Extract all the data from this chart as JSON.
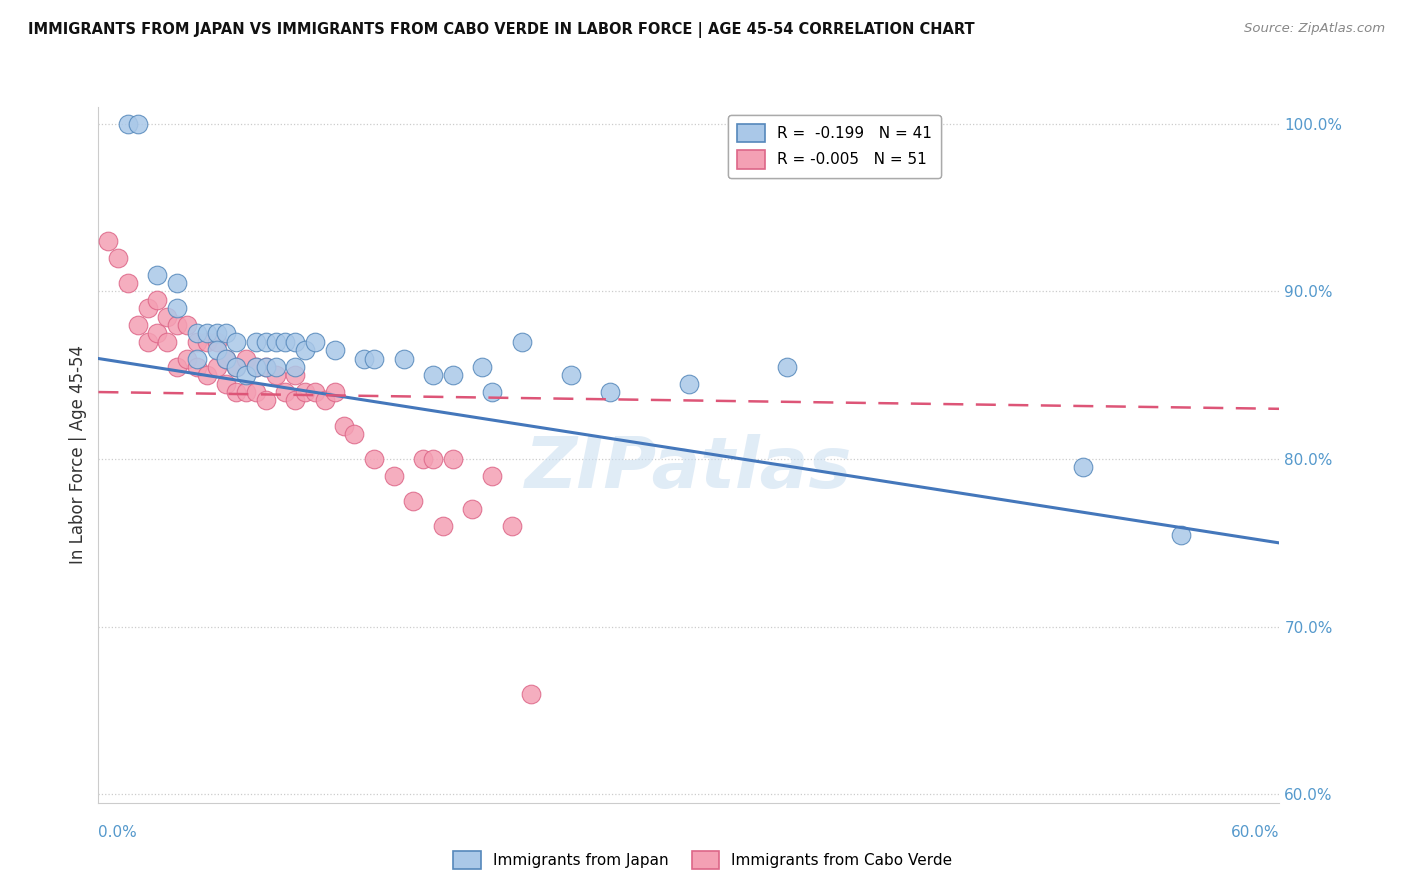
{
  "title": "IMMIGRANTS FROM JAPAN VS IMMIGRANTS FROM CABO VERDE IN LABOR FORCE | AGE 45-54 CORRELATION CHART",
  "source": "Source: ZipAtlas.com",
  "ylabel": "In Labor Force | Age 45-54",
  "xmin": 0.0,
  "xmax": 0.6,
  "ymin": 0.595,
  "ymax": 1.01,
  "legend_japan": "R =  -0.199   N = 41",
  "legend_cabo": "R = -0.005   N = 51",
  "japan_color": "#aac8e8",
  "cabo_color": "#f4a0b4",
  "japan_edge_color": "#5588bb",
  "cabo_edge_color": "#dd6688",
  "japan_line_color": "#4477bb",
  "cabo_line_color": "#dd5577",
  "watermark": "ZIPatlas",
  "japan_scatter_x": [
    0.015,
    0.02,
    0.03,
    0.04,
    0.04,
    0.05,
    0.05,
    0.055,
    0.06,
    0.06,
    0.065,
    0.065,
    0.07,
    0.07,
    0.075,
    0.08,
    0.08,
    0.085,
    0.085,
    0.09,
    0.09,
    0.095,
    0.1,
    0.1,
    0.105,
    0.11,
    0.12,
    0.135,
    0.14,
    0.155,
    0.17,
    0.18,
    0.195,
    0.2,
    0.215,
    0.24,
    0.26,
    0.3,
    0.35,
    0.5,
    0.55
  ],
  "japan_scatter_y": [
    1.0,
    1.0,
    0.91,
    0.905,
    0.89,
    0.875,
    0.86,
    0.875,
    0.875,
    0.865,
    0.875,
    0.86,
    0.87,
    0.855,
    0.85,
    0.87,
    0.855,
    0.87,
    0.855,
    0.87,
    0.855,
    0.87,
    0.87,
    0.855,
    0.865,
    0.87,
    0.865,
    0.86,
    0.86,
    0.86,
    0.85,
    0.85,
    0.855,
    0.84,
    0.87,
    0.85,
    0.84,
    0.845,
    0.855,
    0.795,
    0.755
  ],
  "cabo_scatter_x": [
    0.005,
    0.01,
    0.015,
    0.02,
    0.025,
    0.025,
    0.03,
    0.03,
    0.035,
    0.035,
    0.04,
    0.04,
    0.045,
    0.045,
    0.05,
    0.05,
    0.055,
    0.055,
    0.06,
    0.06,
    0.065,
    0.065,
    0.07,
    0.07,
    0.075,
    0.075,
    0.08,
    0.08,
    0.085,
    0.085,
    0.09,
    0.095,
    0.1,
    0.1,
    0.105,
    0.11,
    0.115,
    0.12,
    0.125,
    0.13,
    0.14,
    0.15,
    0.16,
    0.165,
    0.17,
    0.175,
    0.18,
    0.19,
    0.2,
    0.21,
    0.22
  ],
  "cabo_scatter_y": [
    0.93,
    0.92,
    0.905,
    0.88,
    0.89,
    0.87,
    0.895,
    0.875,
    0.885,
    0.87,
    0.88,
    0.855,
    0.88,
    0.86,
    0.87,
    0.855,
    0.87,
    0.85,
    0.87,
    0.855,
    0.86,
    0.845,
    0.855,
    0.84,
    0.86,
    0.84,
    0.855,
    0.84,
    0.855,
    0.835,
    0.85,
    0.84,
    0.85,
    0.835,
    0.84,
    0.84,
    0.835,
    0.84,
    0.82,
    0.815,
    0.8,
    0.79,
    0.775,
    0.8,
    0.8,
    0.76,
    0.8,
    0.77,
    0.79,
    0.76,
    0.66
  ],
  "japan_trend_x": [
    0.0,
    0.6
  ],
  "japan_trend_y": [
    0.86,
    0.75
  ],
  "cabo_trend_x": [
    0.0,
    0.6
  ],
  "cabo_trend_y": [
    0.84,
    0.83
  ],
  "yticks": [
    0.6,
    0.7,
    0.8,
    0.9,
    1.0
  ],
  "ytick_labels": [
    "60.0%",
    "70.0%",
    "80.0%",
    "90.0%",
    "100.0%"
  ],
  "grid_color": "#cccccc",
  "background_color": "#ffffff",
  "tick_color": "#5599cc"
}
